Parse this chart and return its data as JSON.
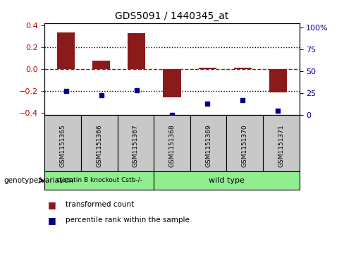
{
  "title": "GDS5091 / 1440345_at",
  "samples": [
    "GSM1151365",
    "GSM1151366",
    "GSM1151367",
    "GSM1151368",
    "GSM1151369",
    "GSM1151370",
    "GSM1151371"
  ],
  "bar_values": [
    0.335,
    0.08,
    0.33,
    -0.26,
    0.01,
    0.01,
    -0.21
  ],
  "percentile_values": [
    0.28,
    0.23,
    0.285,
    0.005,
    0.13,
    0.17,
    0.055
  ],
  "bar_color": "#8B1A1A",
  "dot_color": "#00008B",
  "ylim_left": [
    -0.42,
    0.42
  ],
  "ylim_right": [
    0,
    105
  ],
  "yticks_left": [
    -0.4,
    -0.2,
    0.0,
    0.2,
    0.4
  ],
  "yticks_right": [
    0,
    25,
    50,
    75,
    100
  ],
  "ytick_labels_right": [
    "0",
    "25",
    "50",
    "75",
    "100%"
  ],
  "hline_color": "#CC0000",
  "dotted_color": "black",
  "group1_label": "cystatin B knockout Cstb-/-",
  "group2_label": "wild type",
  "group1_indices": [
    0,
    1,
    2
  ],
  "group2_indices": [
    3,
    4,
    5,
    6
  ],
  "group1_color": "#90EE90",
  "group2_color": "#90EE90",
  "genotype_label": "genotype/variation",
  "legend_bar_label": "transformed count",
  "legend_dot_label": "percentile rank within the sample",
  "bg_color": "white",
  "plot_bg_color": "white",
  "grid_color": "#CCCCCC",
  "bar_width": 0.5
}
